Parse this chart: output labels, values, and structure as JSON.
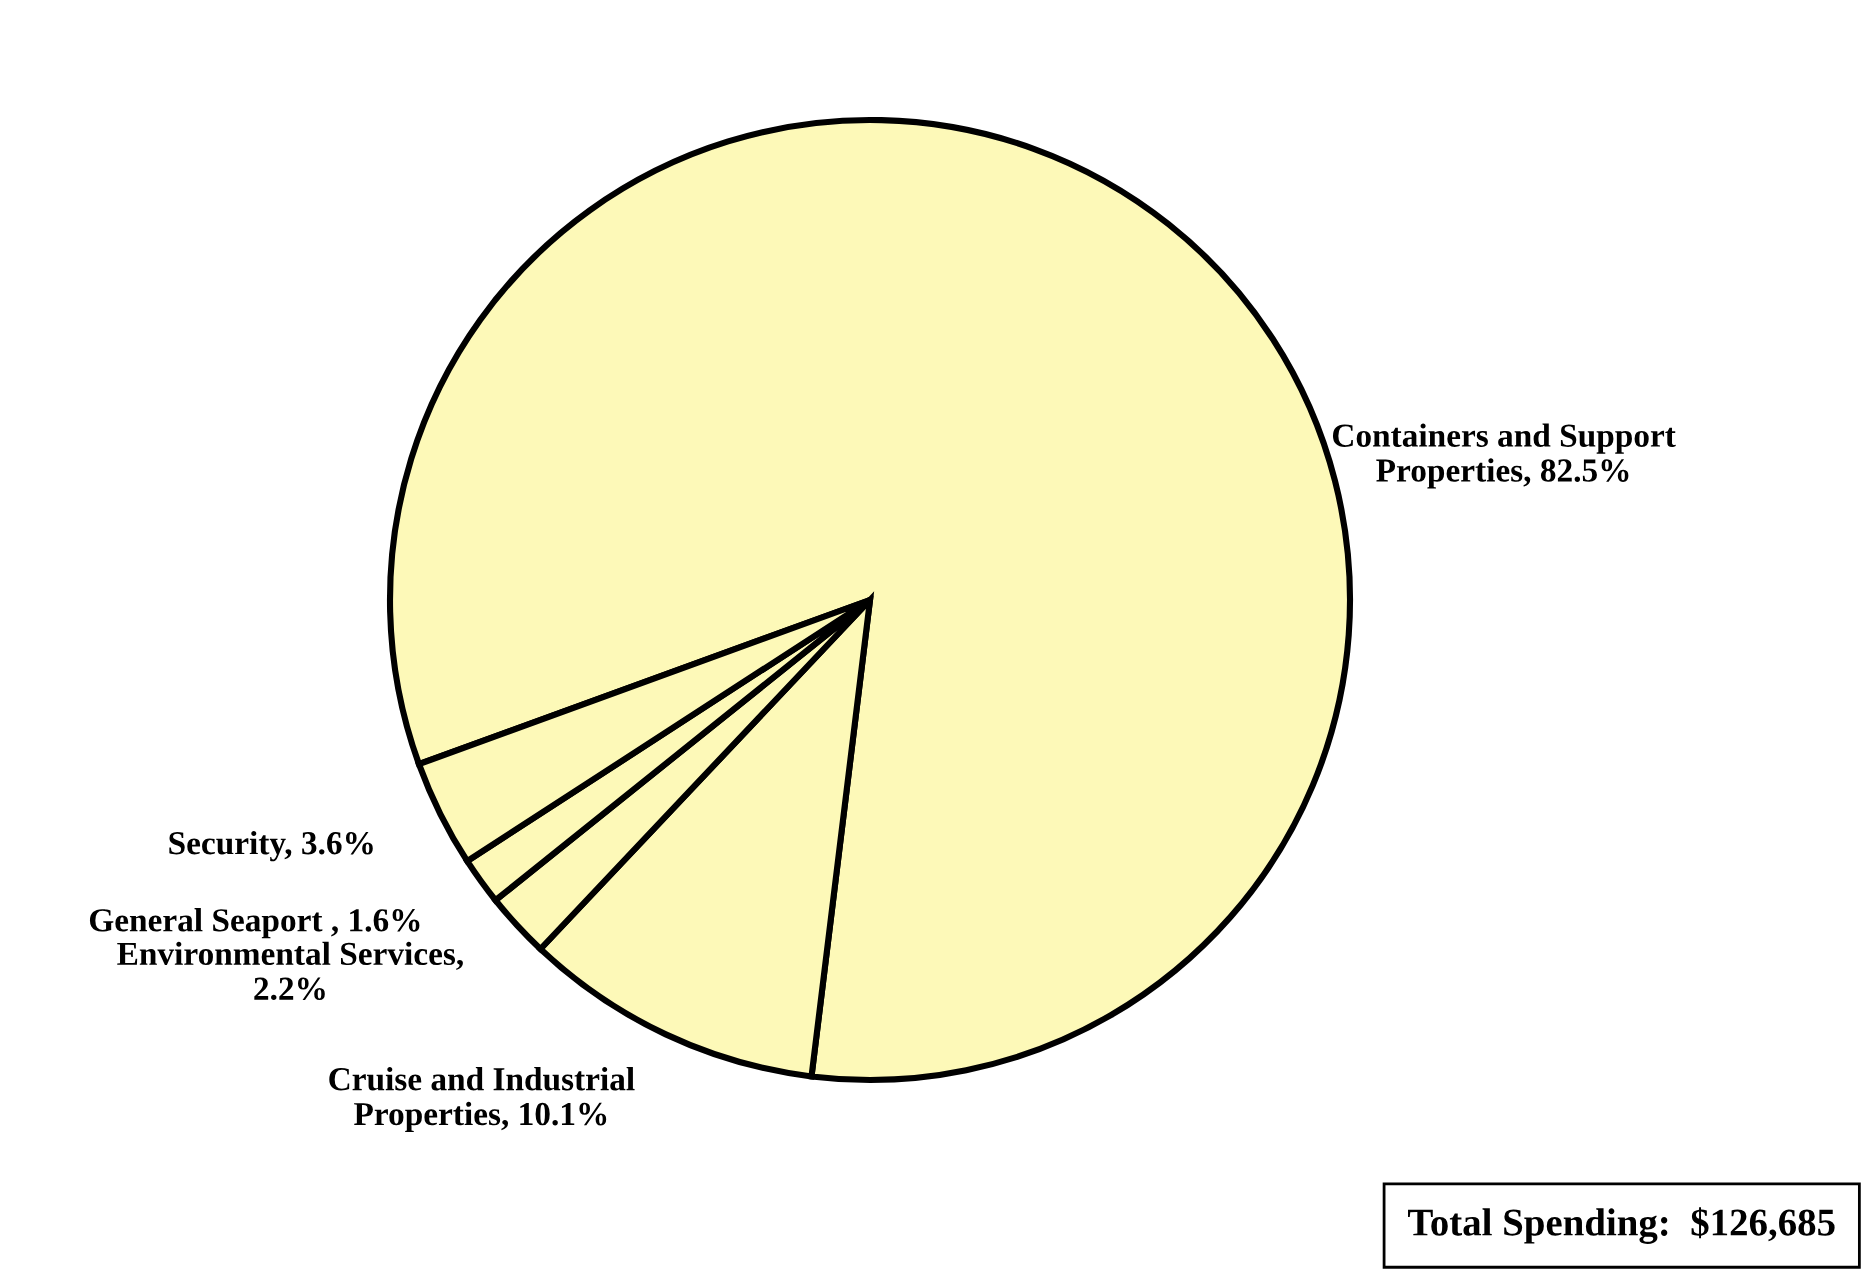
{
  "chart_data": {
    "type": "pie",
    "categories": [
      "Containers and Support\nProperties, 82.5%",
      "Cruise and Industrial\nProperties, 10.1%",
      "Environmental Services,\n2.2%",
      "General Seaport , 1.6%",
      "Security, 3.6%"
    ],
    "values": [
      82.5,
      10.1,
      2.2,
      1.6,
      3.6
    ],
    "colors": [
      "#fdf9b8",
      "#fdf9b8",
      "#fdf9b8",
      "#fdf9b8",
      "#fdf9b8"
    ],
    "annotations": [
      "Total Spending:  $126,685"
    ]
  }
}
